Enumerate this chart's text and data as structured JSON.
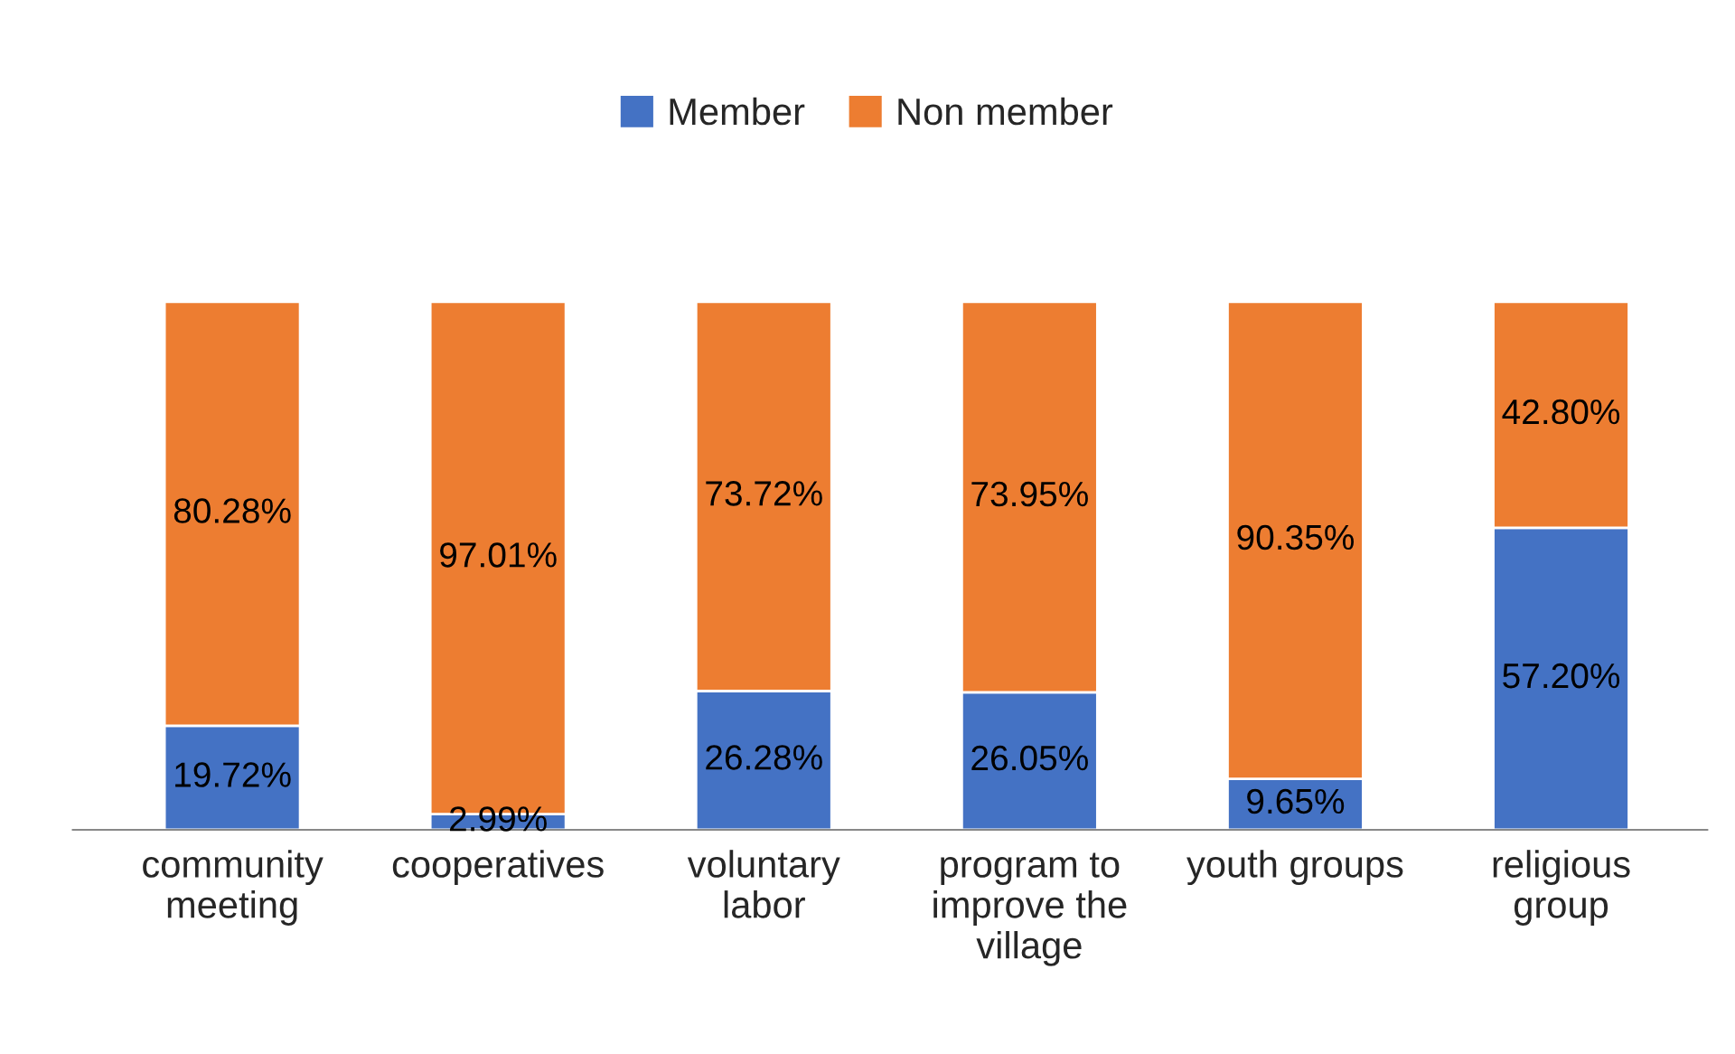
{
  "chart_data": {
    "type": "bar",
    "stacked": true,
    "data_labels": true,
    "legend": "top",
    "categories": [
      "community\nmeeting",
      "cooperatives",
      "voluntary\nlabor",
      "program to\nimprove the\nvillage",
      "youth groups",
      "religious\ngroup"
    ],
    "series": [
      {
        "name": "Member",
        "color": "#4472c4",
        "values": [
          19.72,
          2.99,
          26.28,
          26.05,
          9.65,
          57.2
        ],
        "value_labels": [
          "19.72%",
          "2.99%",
          "26.28%",
          "26.05%",
          "9.65%",
          "57.20%"
        ]
      },
      {
        "name": "Non member",
        "color": "#ed7d31",
        "values": [
          80.28,
          97.01,
          73.72,
          73.95,
          90.35,
          42.8
        ],
        "value_labels": [
          "80.28%",
          "97.01%",
          "73.72%",
          "73.95%",
          "90.35%",
          "42.80%"
        ]
      }
    ]
  }
}
